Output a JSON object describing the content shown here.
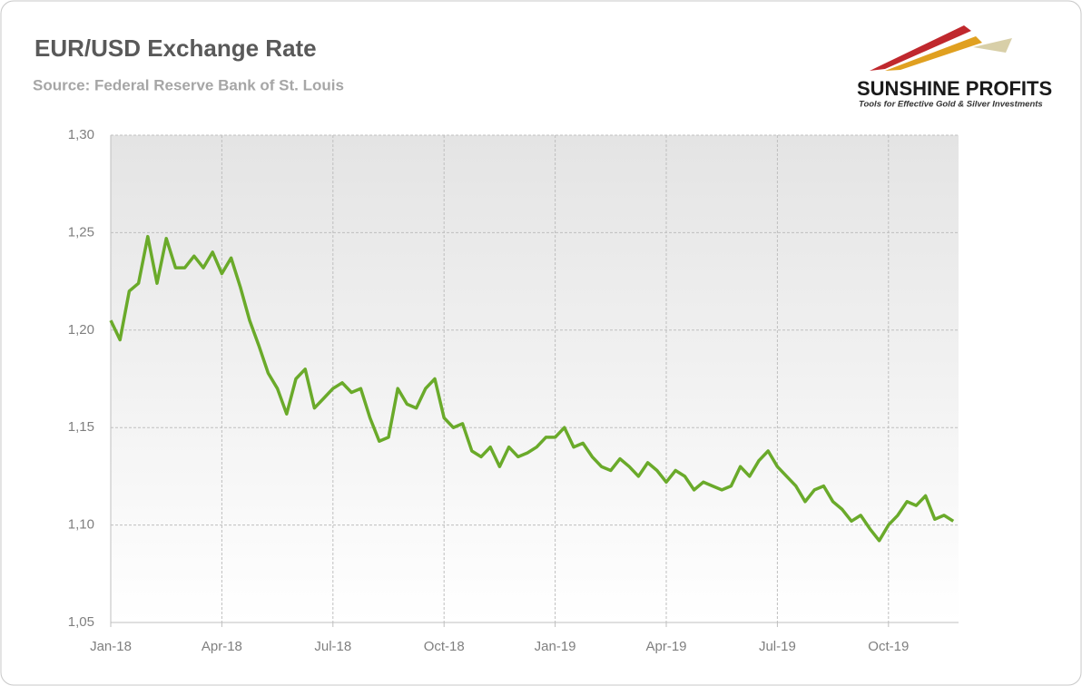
{
  "chart_data": {
    "type": "line",
    "title": "EUR/USD Exchange Rate",
    "subtitle": "Source: Federal Reserve Bank of St. Louis",
    "logo": {
      "name": "SUNSHINE PROFITS",
      "tagline": "Tools for Effective Gold & Silver Investments"
    },
    "x": [
      "2018-01",
      "2018-01",
      "2018-01",
      "2018-01",
      "2018-02",
      "2018-02",
      "2018-02",
      "2018-02",
      "2018-03",
      "2018-03",
      "2018-03",
      "2018-03",
      "2018-04",
      "2018-04",
      "2018-04",
      "2018-04",
      "2018-05",
      "2018-05",
      "2018-05",
      "2018-05",
      "2018-06",
      "2018-06",
      "2018-06",
      "2018-06",
      "2018-07",
      "2018-07",
      "2018-07",
      "2018-07",
      "2018-08",
      "2018-08",
      "2018-08",
      "2018-08",
      "2018-09",
      "2018-09",
      "2018-09",
      "2018-09",
      "2018-10",
      "2018-10",
      "2018-10",
      "2018-10",
      "2018-11",
      "2018-11",
      "2018-11",
      "2018-11",
      "2018-12",
      "2018-12",
      "2018-12",
      "2018-12",
      "2019-01",
      "2019-01",
      "2019-01",
      "2019-01",
      "2019-02",
      "2019-02",
      "2019-02",
      "2019-02",
      "2019-03",
      "2019-03",
      "2019-03",
      "2019-03",
      "2019-04",
      "2019-04",
      "2019-04",
      "2019-04",
      "2019-05",
      "2019-05",
      "2019-05",
      "2019-05",
      "2019-06",
      "2019-06",
      "2019-06",
      "2019-06",
      "2019-07",
      "2019-07",
      "2019-07",
      "2019-07",
      "2019-08",
      "2019-08",
      "2019-08",
      "2019-08",
      "2019-09",
      "2019-09",
      "2019-09",
      "2019-09",
      "2019-10",
      "2019-10",
      "2019-10",
      "2019-10",
      "2019-11",
      "2019-11",
      "2019-11",
      "2019-11"
    ],
    "series": [
      {
        "name": "EUR/USD",
        "color": "#6aaa2a",
        "values": [
          1.205,
          1.195,
          1.22,
          1.224,
          1.248,
          1.224,
          1.247,
          1.232,
          1.232,
          1.238,
          1.232,
          1.24,
          1.229,
          1.237,
          1.222,
          1.205,
          1.192,
          1.178,
          1.17,
          1.157,
          1.175,
          1.18,
          1.16,
          1.165,
          1.17,
          1.173,
          1.168,
          1.17,
          1.155,
          1.143,
          1.145,
          1.17,
          1.162,
          1.16,
          1.17,
          1.175,
          1.155,
          1.15,
          1.152,
          1.138,
          1.135,
          1.14,
          1.13,
          1.14,
          1.135,
          1.137,
          1.14,
          1.145,
          1.145,
          1.15,
          1.14,
          1.142,
          1.135,
          1.13,
          1.128,
          1.134,
          1.13,
          1.125,
          1.132,
          1.128,
          1.122,
          1.128,
          1.125,
          1.118,
          1.122,
          1.12,
          1.118,
          1.12,
          1.13,
          1.125,
          1.133,
          1.138,
          1.13,
          1.125,
          1.12,
          1.112,
          1.118,
          1.12,
          1.112,
          1.108,
          1.102,
          1.105,
          1.098,
          1.092,
          1.1,
          1.105,
          1.112,
          1.11,
          1.115,
          1.103,
          1.105,
          1.102
        ]
      }
    ],
    "xticks": [
      {
        "value": "2018-01",
        "label": "Jan-18"
      },
      {
        "value": "2018-04",
        "label": "Apr-18"
      },
      {
        "value": "2018-07",
        "label": "Jul-18"
      },
      {
        "value": "2018-10",
        "label": "Oct-18"
      },
      {
        "value": "2019-01",
        "label": "Jan-19"
      },
      {
        "value": "2019-04",
        "label": "Apr-19"
      },
      {
        "value": "2019-07",
        "label": "Jul-19"
      },
      {
        "value": "2019-10",
        "label": "Oct-19"
      }
    ],
    "ylim": [
      1.05,
      1.3
    ],
    "yticks": [
      {
        "value": 1.05,
        "label": "1,05"
      },
      {
        "value": 1.1,
        "label": "1,10"
      },
      {
        "value": 1.15,
        "label": "1,15"
      },
      {
        "value": 1.2,
        "label": "1,20"
      },
      {
        "value": 1.25,
        "label": "1,25"
      },
      {
        "value": 1.3,
        "label": "1,30"
      }
    ],
    "grid": true
  }
}
